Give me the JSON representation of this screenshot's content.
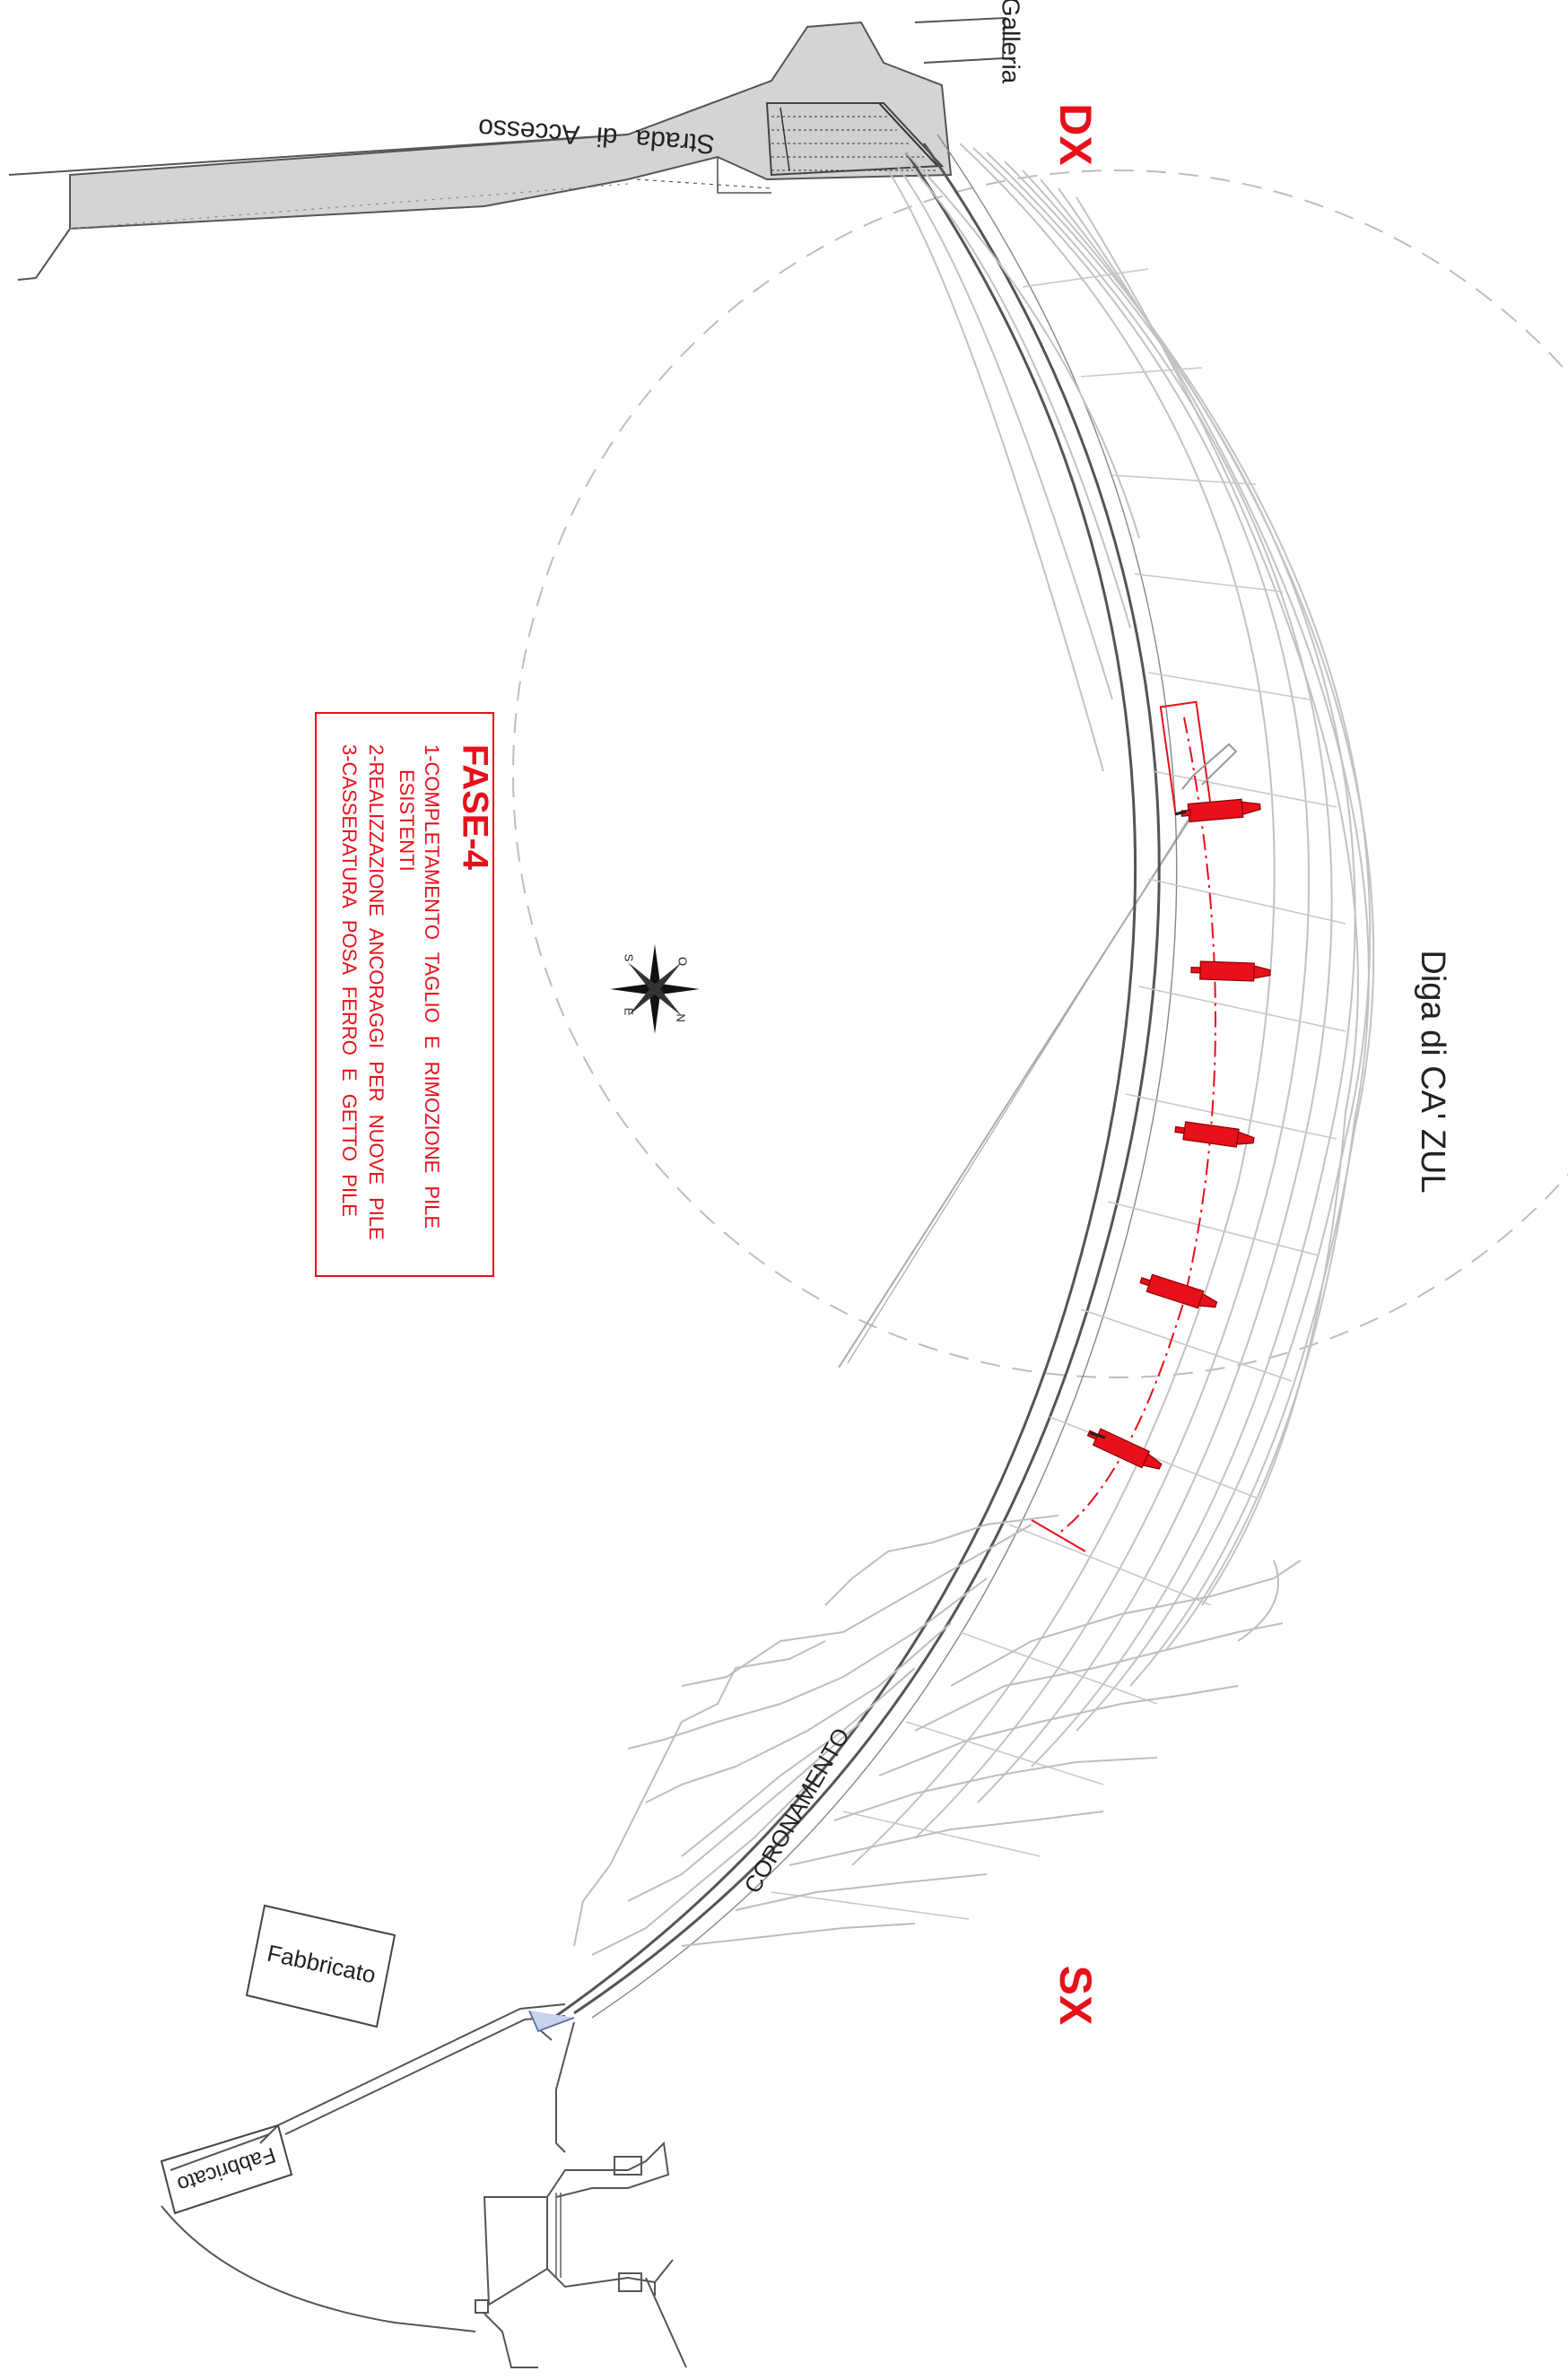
{
  "labels": {
    "galleria": "Galleria",
    "strada": "Strada di Accesso",
    "dx": "DX",
    "sx": "SX",
    "diga": "Diga di CA' ZUL",
    "coronamento": "CORONAMENTO",
    "fabbricato_upper": "Fabbricato",
    "fabbricato_lower": "Fabbricato"
  },
  "phase": {
    "title": "FASE-4",
    "lines": [
      "1-COMPLETAMENTO TAGLIO E RIMOZIONE PILE",
      "ESISTENTI",
      "2-REALIZZAZIONE ANCORAGGI PER NUOVE PILE",
      "3-CASSERATURA POSA FERRO E GETTO PILE"
    ]
  },
  "compass": {
    "n": "N",
    "s": "S",
    "e": "E",
    "o": "O"
  },
  "colors": {
    "accent": "#e8101a",
    "line": "#555555",
    "light": "#b8b8b8",
    "fill": "#d4d4d4"
  }
}
